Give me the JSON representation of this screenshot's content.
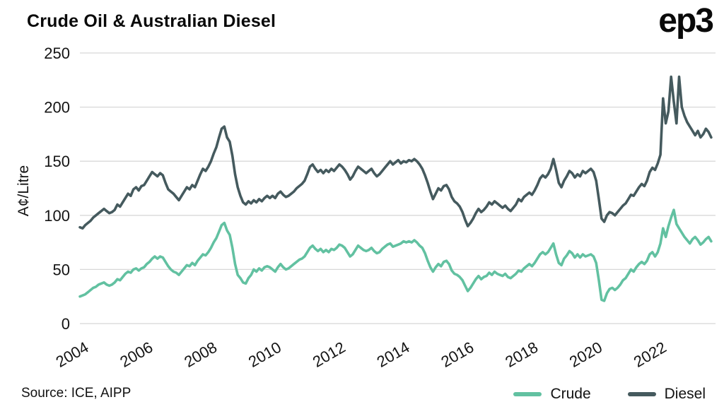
{
  "header": {
    "title": "Crude Oil & Australian Diesel",
    "logo": "ep3"
  },
  "footer": {
    "source": "Source: ICE, AIPP"
  },
  "chart_data": {
    "type": "line",
    "title": "Crude Oil & Australian Diesel",
    "xlabel": "",
    "ylabel": "A¢/Litre",
    "ylim": [
      0,
      250
    ],
    "y_ticks": [
      0,
      50,
      100,
      150,
      200,
      250
    ],
    "x_ticks": [
      2004,
      2006,
      2008,
      2010,
      2012,
      2014,
      2016,
      2018,
      2020,
      2022
    ],
    "xlim": [
      2004,
      2023.8
    ],
    "x_start": 2004,
    "x_step_months": 1,
    "grid": "horizontal-only",
    "legend_position": "bottom-right",
    "series": [
      {
        "name": "Crude",
        "color": "#62c1a1",
        "unit": "A¢/Litre",
        "values": [
          25,
          26,
          27,
          29,
          31,
          33,
          34,
          36,
          37,
          38,
          36,
          35,
          36,
          38,
          41,
          40,
          43,
          46,
          48,
          47,
          50,
          51,
          49,
          51,
          52,
          55,
          57,
          60,
          62,
          60,
          62,
          61,
          57,
          53,
          50,
          48,
          47,
          45,
          48,
          51,
          54,
          53,
          56,
          54,
          58,
          61,
          64,
          63,
          66,
          70,
          75,
          79,
          85,
          91,
          93,
          86,
          82,
          70,
          55,
          45,
          42,
          38,
          37,
          42,
          45,
          50,
          48,
          51,
          49,
          52,
          53,
          52,
          50,
          48,
          52,
          55,
          52,
          50,
          51,
          53,
          55,
          57,
          59,
          60,
          62,
          66,
          70,
          72,
          69,
          67,
          69,
          66,
          68,
          66,
          69,
          68,
          70,
          73,
          72,
          70,
          66,
          62,
          64,
          68,
          72,
          70,
          68,
          67,
          68,
          70,
          67,
          65,
          66,
          69,
          71,
          73,
          74,
          71,
          72,
          73,
          74,
          76,
          75,
          76,
          75,
          77,
          75,
          72,
          70,
          65,
          58,
          52,
          48,
          52,
          55,
          53,
          57,
          58,
          55,
          49,
          46,
          45,
          43,
          40,
          35,
          30,
          33,
          37,
          41,
          44,
          41,
          43,
          44,
          47,
          45,
          48,
          46,
          45,
          44,
          46,
          43,
          42,
          44,
          46,
          49,
          48,
          51,
          53,
          55,
          53,
          56,
          60,
          64,
          66,
          64,
          66,
          70,
          74,
          64,
          56,
          54,
          60,
          63,
          67,
          65,
          61,
          64,
          61,
          64,
          62,
          63,
          64,
          62,
          56,
          40,
          22,
          21,
          28,
          32,
          33,
          31,
          33,
          36,
          40,
          42,
          46,
          50,
          48,
          52,
          55,
          57,
          55,
          58,
          64,
          66,
          62,
          66,
          74,
          88,
          80,
          90,
          98,
          105,
          92,
          88,
          84,
          80,
          77,
          74,
          78,
          80,
          77,
          73,
          75,
          78,
          80,
          76
        ]
      },
      {
        "name": "Diesel",
        "color": "#455a5e",
        "unit": "A¢/Litre",
        "values": [
          89,
          88,
          91,
          93,
          95,
          98,
          100,
          102,
          104,
          106,
          104,
          102,
          103,
          105,
          110,
          108,
          112,
          116,
          120,
          118,
          124,
          126,
          123,
          127,
          128,
          132,
          136,
          140,
          138,
          136,
          139,
          137,
          130,
          124,
          122,
          120,
          117,
          114,
          118,
          122,
          126,
          124,
          128,
          126,
          132,
          138,
          143,
          141,
          145,
          150,
          157,
          163,
          172,
          180,
          182,
          172,
          168,
          155,
          138,
          126,
          118,
          112,
          110,
          113,
          111,
          114,
          112,
          115,
          113,
          116,
          118,
          116,
          118,
          116,
          120,
          122,
          119,
          117,
          118,
          120,
          122,
          125,
          127,
          129,
          132,
          138,
          145,
          147,
          143,
          140,
          142,
          139,
          142,
          140,
          143,
          141,
          144,
          147,
          145,
          142,
          138,
          133,
          136,
          141,
          145,
          143,
          141,
          139,
          141,
          143,
          139,
          136,
          138,
          141,
          144,
          147,
          150,
          147,
          149,
          151,
          148,
          150,
          149,
          151,
          150,
          152,
          150,
          147,
          143,
          137,
          130,
          122,
          115,
          120,
          125,
          123,
          127,
          128,
          124,
          117,
          113,
          111,
          108,
          103,
          96,
          90,
          93,
          97,
          102,
          106,
          103,
          105,
          108,
          112,
          110,
          113,
          111,
          109,
          107,
          109,
          106,
          104,
          107,
          110,
          115,
          113,
          117,
          119,
          121,
          119,
          123,
          128,
          134,
          137,
          135,
          138,
          143,
          152,
          142,
          130,
          126,
          132,
          136,
          141,
          139,
          135,
          138,
          136,
          141,
          139,
          141,
          143,
          140,
          132,
          115,
          97,
          94,
          100,
          103,
          102,
          100,
          103,
          106,
          109,
          111,
          115,
          119,
          118,
          122,
          126,
          129,
          127,
          132,
          140,
          144,
          142,
          148,
          156,
          208,
          185,
          196,
          228,
          205,
          185,
          228,
          200,
          192,
          186,
          182,
          178,
          174,
          178,
          172,
          175,
          180,
          177,
          172
        ]
      }
    ]
  }
}
